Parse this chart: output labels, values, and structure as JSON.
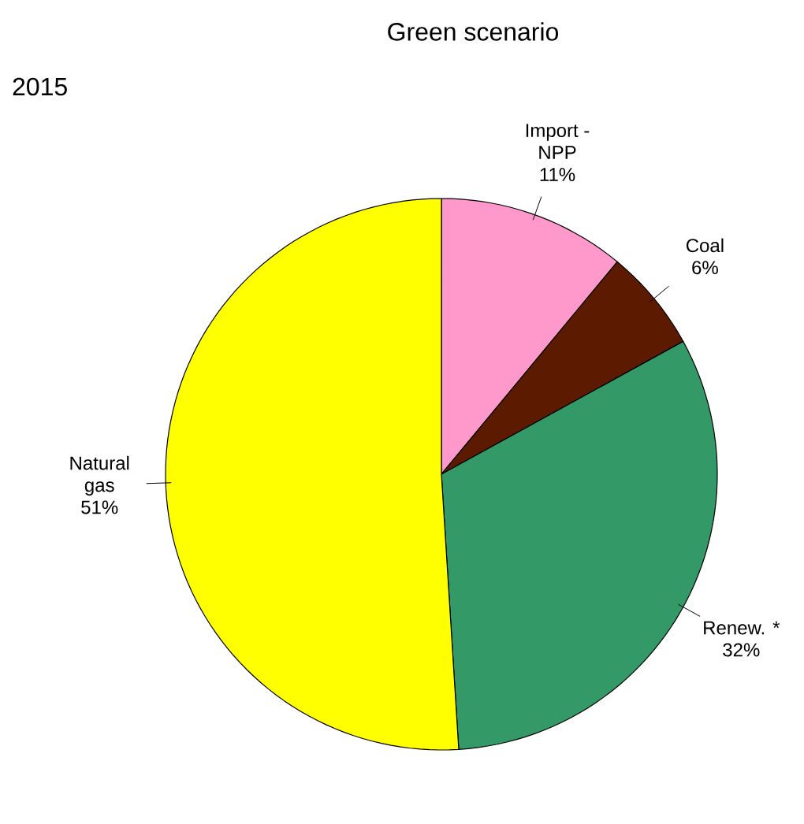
{
  "chart_data": {
    "type": "pie",
    "title": "Green scenario",
    "subtitle": "2015",
    "categories": [
      "Import - NPP",
      "Coal",
      "Renew. *",
      "Natural gas"
    ],
    "values": [
      11,
      6,
      32,
      51
    ],
    "value_labels": [
      "11%",
      "6%",
      "32%",
      "51%"
    ],
    "colors": [
      "#ff99cc",
      "#5c1a00",
      "#339966",
      "#ffff00"
    ]
  }
}
